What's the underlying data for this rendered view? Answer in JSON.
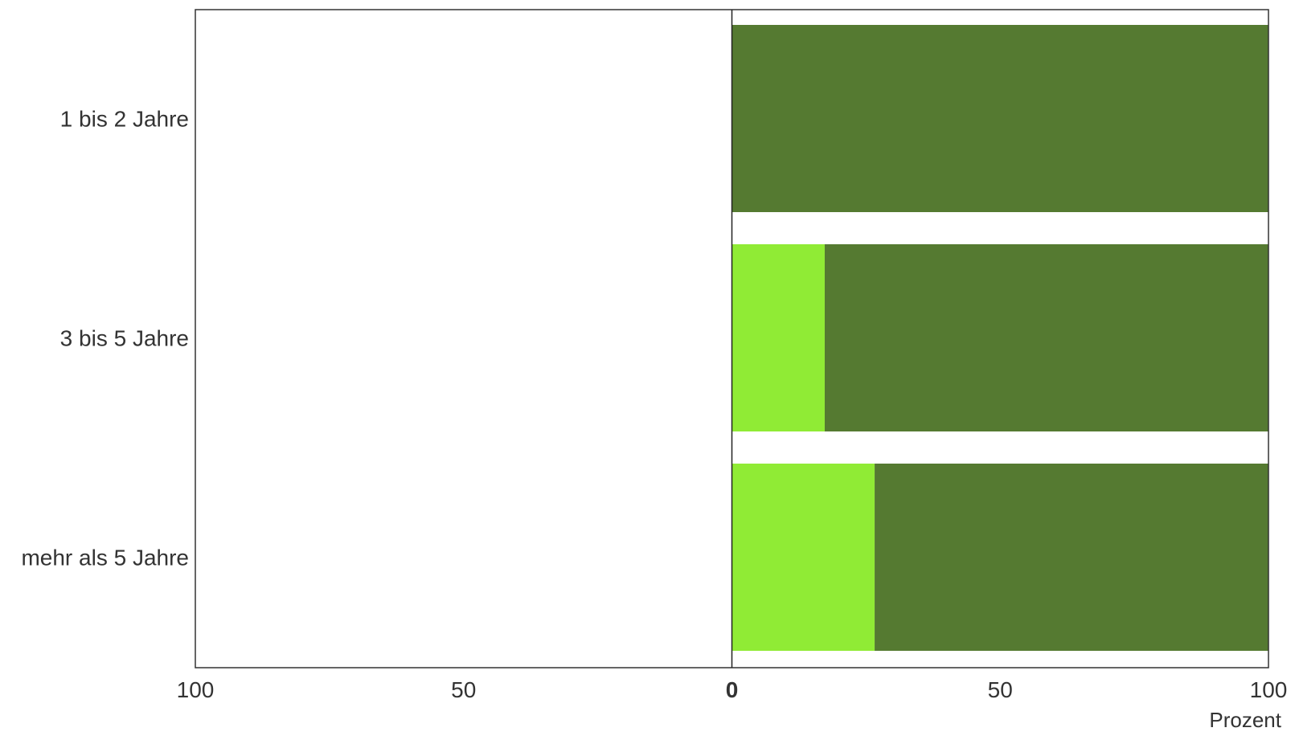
{
  "chart_data": {
    "type": "bar",
    "orientation": "horizontal",
    "stacked": true,
    "diverging": true,
    "categories": [
      "1 bis 2 Jahre",
      "3 bis 5 Jahre",
      "mehr als 5 Jahre"
    ],
    "series": [
      {
        "color": "#90eb35",
        "values": [
          0,
          17.3,
          26.6
        ]
      },
      {
        "color": "#557a31",
        "values": [
          100,
          82.7,
          73.4
        ]
      }
    ],
    "xlim": [
      -100,
      100
    ],
    "x_ticks": [
      -100,
      -50,
      0,
      50,
      100
    ],
    "x_tick_labels": [
      "100",
      "50",
      "0",
      "50",
      "100"
    ],
    "xlabel": "Prozent",
    "grid": false,
    "legend": "none"
  }
}
